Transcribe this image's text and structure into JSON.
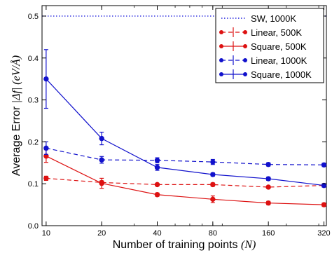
{
  "chart_data": {
    "type": "line",
    "xlabel": {
      "main": "Number of training points ",
      "math": "(N)"
    },
    "ylabel": {
      "main": "Average Error ",
      "math": "|Δf| (eV/Å)"
    },
    "x_scale": "log2",
    "xlim": [
      9.5,
      330
    ],
    "ylim": [
      0,
      0.525
    ],
    "x_ticks": [
      10,
      20,
      40,
      80,
      160,
      320
    ],
    "y_ticks": [
      0.0,
      0.1,
      0.2,
      0.3,
      0.4,
      0.5
    ],
    "y_tick_labels": [
      "0.0",
      "0.1",
      "0.2",
      "0.3",
      "0.4",
      "0.5"
    ],
    "grid": false,
    "legend_position": "top-right",
    "reference_line": {
      "name": "SW, 1000K",
      "y": 0.5,
      "color": "#2222dd",
      "style": "dotted"
    },
    "series": [
      {
        "name": "Linear, 500K",
        "color": "#dd1111",
        "style": "dashed",
        "x": [
          10,
          20,
          40,
          80,
          160,
          320
        ],
        "values": [
          0.113,
          0.103,
          0.098,
          0.098,
          0.092,
          0.096
        ],
        "errors": [
          0.005,
          0.004,
          0.003,
          0.004,
          0.003,
          0.003
        ]
      },
      {
        "name": "Square, 500K",
        "color": "#dd1111",
        "style": "solid",
        "x": [
          10,
          20,
          40,
          80,
          160,
          320
        ],
        "values": [
          0.166,
          0.101,
          0.074,
          0.063,
          0.054,
          0.05
        ],
        "errors": [
          0.015,
          0.012,
          0.004,
          0.008,
          0.004,
          0.004
        ]
      },
      {
        "name": "Linear, 1000K",
        "color": "#1111cc",
        "style": "dashed",
        "x": [
          10,
          20,
          40,
          80,
          160,
          320
        ],
        "values": [
          0.185,
          0.157,
          0.156,
          0.152,
          0.146,
          0.145
        ],
        "errors": [
          0.015,
          0.008,
          0.006,
          0.006,
          0.004,
          0.004
        ]
      },
      {
        "name": "Square, 1000K",
        "color": "#1111cc",
        "style": "solid",
        "x": [
          10,
          20,
          40,
          80,
          160,
          320
        ],
        "values": [
          0.35,
          0.208,
          0.139,
          0.122,
          0.112,
          0.096
        ],
        "errors": [
          0.07,
          0.015,
          0.007,
          0.004,
          0.004,
          0.004
        ]
      }
    ]
  }
}
